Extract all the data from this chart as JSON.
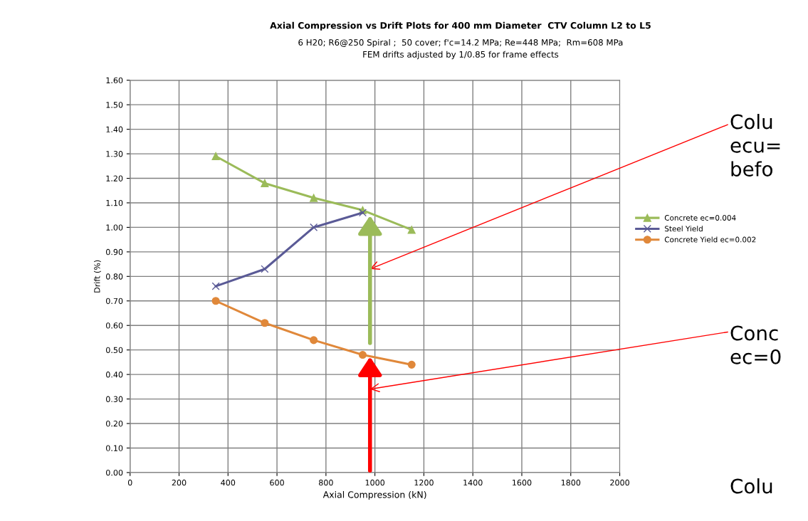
{
  "chart_data": {
    "type": "line",
    "title": "Axial Compression vs Drift Plots for 400 mm Diameter  CTV Column L2 to L5",
    "subtitle": "6 H20; R6@250 Spiral ;  50 cover; f'c=14.2 MPa; Re=448 MPa;  Rm=608 MPa\nFEM drifts adjusted by 1/0.85 for frame effects",
    "xlabel": "Axial Compression (kN)",
    "ylabel": "Drift (%)",
    "x": [
      350,
      550,
      750,
      950,
      1150
    ],
    "series": [
      {
        "name": "Concrete ec=0.004",
        "color": "#9bbb59",
        "marker": "triangle",
        "values": [
          1.29,
          1.18,
          1.12,
          1.07,
          0.99
        ]
      },
      {
        "name": "Steel Yield",
        "color": "#5a5a96",
        "marker": "cross",
        "values": [
          0.76,
          0.83,
          1.0,
          1.06,
          null
        ]
      },
      {
        "name": "Concrete Yield ec=0.002",
        "color": "#e0883a",
        "marker": "circle",
        "values": [
          0.7,
          0.61,
          0.54,
          0.48,
          0.44
        ]
      }
    ],
    "xlim": [
      0,
      2000
    ],
    "xticks": [
      0,
      200,
      400,
      600,
      800,
      1000,
      1200,
      1400,
      1600,
      1800,
      2000
    ],
    "ylim": [
      0,
      1.6
    ],
    "yticks": [
      {
        "value": 0,
        "label": "0.00"
      },
      {
        "value": 0.1,
        "label": "0.10"
      },
      {
        "value": 0.2,
        "label": "0.20"
      },
      {
        "value": 0.3,
        "label": "0.30"
      },
      {
        "value": 0.4,
        "label": "0.40"
      },
      {
        "value": 0.5,
        "label": "0.50"
      },
      {
        "value": 0.6,
        "label": "0.60"
      },
      {
        "value": 0.7,
        "label": "0.70"
      },
      {
        "value": 0.8,
        "label": "0.80"
      },
      {
        "value": 0.9,
        "label": "0.90"
      },
      {
        "value": 1.0,
        "label": "1.00"
      },
      {
        "value": 1.1,
        "label": "1.10"
      },
      {
        "value": 1.2,
        "label": "1.20"
      },
      {
        "value": 1.3,
        "label": "1.30"
      },
      {
        "value": 1.4,
        "label": "1.40"
      },
      {
        "value": 1.5,
        "label": "1.50"
      },
      {
        "value": 1.6,
        "label": "1.60"
      }
    ],
    "grid": true,
    "legend": "right",
    "line_style": "solid",
    "annotations": [
      "Colu\necu=\nbefo",
      "Conc\nec=0",
      "Colu"
    ]
  }
}
